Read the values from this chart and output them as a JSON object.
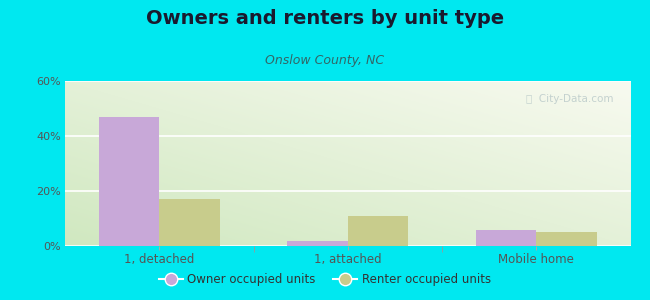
{
  "title": "Owners and renters by unit type",
  "subtitle": "Onslow County, NC",
  "categories": [
    "1, detached",
    "1, attached",
    "Mobile home"
  ],
  "owner_values": [
    47,
    2,
    6
  ],
  "renter_values": [
    17,
    11,
    5
  ],
  "owner_color": "#c8a8d8",
  "renter_color": "#c8cc8c",
  "ylim": [
    0,
    60
  ],
  "yticks": [
    0,
    20,
    40,
    60
  ],
  "ytick_labels": [
    "0%",
    "20%",
    "40%",
    "60%"
  ],
  "bg_outer": "#00e8f0",
  "bar_width": 0.32,
  "legend_owner": "Owner occupied units",
  "legend_renter": "Renter occupied units",
  "watermark": "ⓘ  City-Data.com",
  "title_fontsize": 14,
  "subtitle_fontsize": 9
}
